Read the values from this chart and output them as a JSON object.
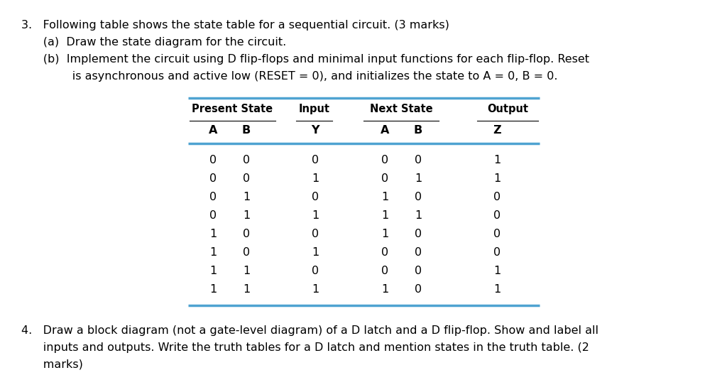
{
  "background_color": "#ffffff",
  "text_color": "#000000",
  "table_line_color": "#4fa3d1",
  "q3_main": "3.   Following table shows the state table for a sequential circuit. (3 marks)",
  "q3a": "      (a)  Draw the state diagram for the circuit.",
  "q3b1": "      (b)  Implement the circuit using D flip-flops and minimal input functions for each flip-flop. Reset",
  "q3b2": "              is asynchronous and active low (RESET = 0), and initializes the state to A = 0, B = 0.",
  "q4_1": "4.   Draw a block diagram (not a gate-level diagram) of a D latch and a D flip-flop. Show and label all",
  "q4_2": "      inputs and outputs. Write the truth tables for a D latch and mention states in the truth table. (2",
  "q4_3": "      marks)",
  "group_headers": [
    "Present State",
    "Input",
    "Next State",
    "Output"
  ],
  "subheaders": [
    "A",
    "B",
    "Y",
    "A",
    "B",
    "Z"
  ],
  "table_data": [
    [
      0,
      0,
      0,
      0,
      0,
      1
    ],
    [
      0,
      0,
      1,
      0,
      1,
      1
    ],
    [
      0,
      1,
      0,
      1,
      0,
      0
    ],
    [
      0,
      1,
      1,
      1,
      1,
      0
    ],
    [
      1,
      0,
      0,
      1,
      0,
      0
    ],
    [
      1,
      0,
      1,
      0,
      0,
      0
    ],
    [
      1,
      1,
      0,
      0,
      0,
      1
    ],
    [
      1,
      1,
      1,
      1,
      0,
      1
    ]
  ],
  "font_size": 11.5,
  "font_size_small": 10.5
}
